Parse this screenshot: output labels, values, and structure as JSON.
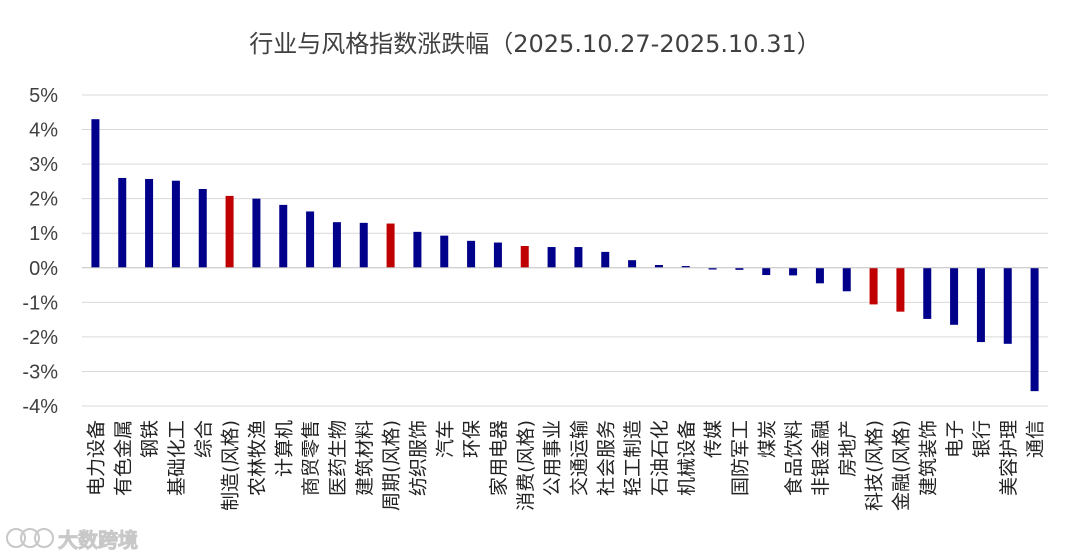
{
  "watermark": {
    "text": "大数跨境"
  },
  "colors": {
    "industry": "#00008B",
    "style": "#C00000",
    "grid": "#D9D9D9",
    "axis": "#BFBFBF"
  },
  "chart_data": {
    "type": "bar",
    "title": "行业与风格指数涨跌幅（2025.10.27-2025.10.31）",
    "xlabel": "",
    "ylabel": "",
    "ylim": [
      -4,
      5
    ],
    "yticks": [
      5,
      4,
      3,
      2,
      1,
      0,
      -1,
      -2,
      -3,
      -4
    ],
    "ytick_labels": [
      "5%",
      "4%",
      "3%",
      "2%",
      "1%",
      "0%",
      "-1%",
      "-2%",
      "-3%",
      "-4%"
    ],
    "grid": true,
    "legend": "none",
    "unit": "%",
    "categories": [
      "电力设备",
      "有色金属",
      "钢铁",
      "基础化工",
      "综合",
      "制造(风格)",
      "农林牧渔",
      "计算机",
      "商贸零售",
      "医药生物",
      "建筑材料",
      "周期(风格)",
      "纺织服饰",
      "汽车",
      "环保",
      "家用电器",
      "消费(风格)",
      "公用事业",
      "交通运输",
      "社会服务",
      "轻工制造",
      "石油石化",
      "机械设备",
      "传媒",
      "国防军工",
      "煤炭",
      "食品饮料",
      "非银金融",
      "房地产",
      "科技(风格)",
      "金融(风格)",
      "建筑装饰",
      "电子",
      "银行",
      "美容护理",
      "通信"
    ],
    "values": [
      4.3,
      2.6,
      2.57,
      2.52,
      2.28,
      2.08,
      2.0,
      1.82,
      1.63,
      1.32,
      1.3,
      1.28,
      1.04,
      0.93,
      0.78,
      0.73,
      0.63,
      0.6,
      0.6,
      0.46,
      0.22,
      0.08,
      0.05,
      -0.05,
      -0.06,
      -0.21,
      -0.22,
      -0.45,
      -0.68,
      -1.06,
      -1.27,
      -1.48,
      -1.65,
      -2.15,
      -2.2,
      -3.57
    ],
    "is_style": [
      false,
      false,
      false,
      false,
      false,
      true,
      false,
      false,
      false,
      false,
      false,
      true,
      false,
      false,
      false,
      false,
      true,
      false,
      false,
      false,
      false,
      false,
      false,
      false,
      false,
      false,
      false,
      false,
      false,
      true,
      true,
      false,
      false,
      false,
      false,
      false
    ]
  }
}
